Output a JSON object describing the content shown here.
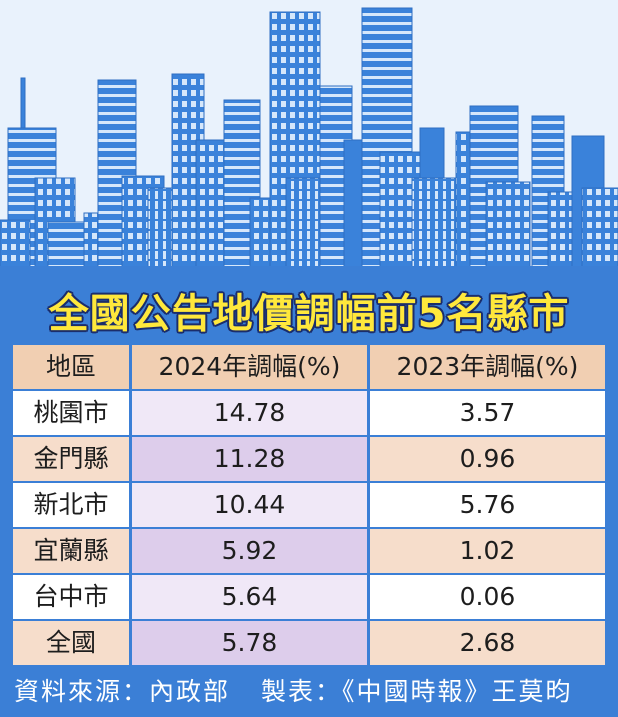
{
  "colors": {
    "frame_blue": "#3b7fd6",
    "building_blue": "#3a82da",
    "window_light": "#d5e7fb",
    "sky": "#e9f2fc",
    "title_yellow": "#ffe83c",
    "title_outline": "#1b2d6b",
    "header_bg": "#f1cfb2",
    "row_white": "#ffffff",
    "row_peach": "#f6ddcb",
    "lavender_light": "#f0e8f7",
    "lavender": "#ddcdeb",
    "footer_text": "#ffffff"
  },
  "chart_data": {
    "type": "table",
    "title": "全國公告地價調幅前5名縣市",
    "columns": [
      "地區",
      "2024年調幅(%)",
      "2023年調幅(%)"
    ],
    "rows": [
      [
        "桃園市",
        14.78,
        3.57
      ],
      [
        "金門縣",
        11.28,
        0.96
      ],
      [
        "新北市",
        10.44,
        5.76
      ],
      [
        "宜蘭縣",
        5.92,
        1.02
      ],
      [
        "台中市",
        5.64,
        0.06
      ],
      [
        "全國",
        5.78,
        2.68
      ]
    ]
  },
  "footer": {
    "source": "資料來源：內政部",
    "credit": "製表：《中國時報》王莫昀"
  }
}
